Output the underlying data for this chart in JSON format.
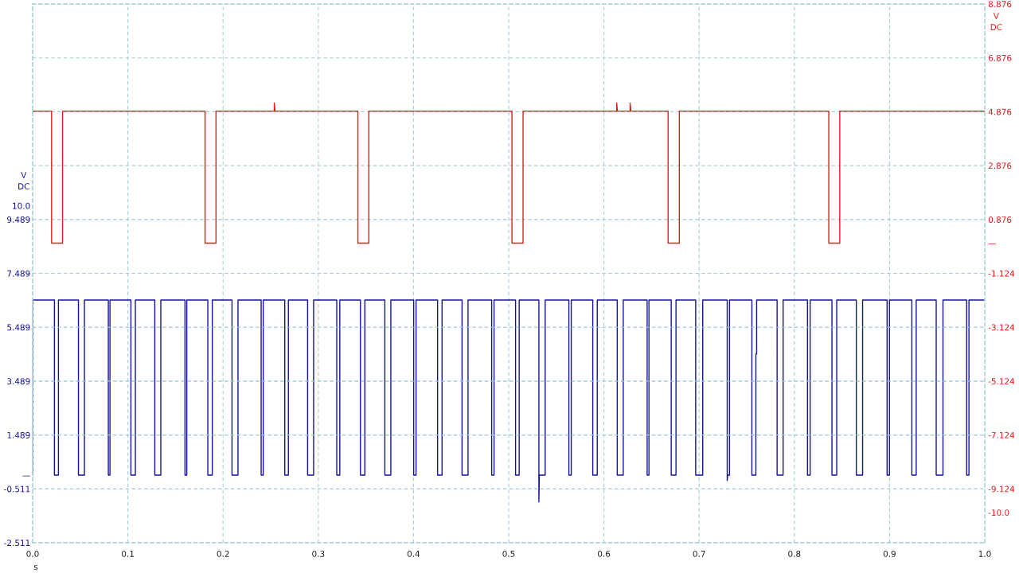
{
  "chart_data": {
    "type": "line",
    "xlabel": "s",
    "ylabel": "V\nDC",
    "y2label": "V\nDC",
    "xlim": [
      0,
      1
    ],
    "xticks": [
      {
        "value": 0,
        "label": "0.0"
      },
      0.1,
      0.2,
      0.3,
      0.4,
      0.5,
      0.6,
      0.7,
      0.8,
      0.9,
      {
        "value": 1,
        "label": "1.0"
      }
    ],
    "ylim": [
      -2.511,
      17.489
    ],
    "yticks": [
      -2.511,
      -0.511,
      {
        "value": 0,
        "label": "—"
      },
      1.489,
      3.489,
      5.489,
      7.489,
      9.489,
      {
        "value": 10,
        "label": "10.0"
      }
    ],
    "y2lim": [
      -11.124,
      8.876
    ],
    "y2ticks": [
      {
        "value": -10,
        "label": "-10.0"
      },
      -9.124,
      -7.124,
      -5.124,
      -3.124,
      -1.124,
      {
        "value": 0,
        "label": "—"
      },
      0.876,
      2.876,
      4.876,
      6.876,
      8.876
    ],
    "grid": true,
    "series": [
      {
        "color": "#14149b",
        "axis": "y",
        "x": [
          0.0,
          0.0,
          0.0229,
          0.0229,
          0.0271,
          0.0271,
          0.0481,
          0.0481,
          0.0544,
          0.0544,
          0.0795,
          0.0795,
          0.0812,
          0.0812,
          0.1032,
          0.1032,
          0.1079,
          0.1079,
          0.1283,
          0.1283,
          0.1346,
          0.1346,
          0.16,
          0.16,
          0.1619,
          0.1619,
          0.184,
          0.184,
          0.1887,
          0.1887,
          0.2094,
          0.2094,
          0.2157,
          0.2157,
          0.24,
          0.24,
          0.2422,
          0.2422,
          0.2648,
          0.2648,
          0.2686,
          0.2686,
          0.2888,
          0.2888,
          0.2951,
          0.2951,
          0.3194,
          0.3194,
          0.3226,
          0.3226,
          0.3443,
          0.3443,
          0.3489,
          0.3489,
          0.3699,
          0.3699,
          0.3762,
          0.3762,
          0.4002,
          0.4002,
          0.4027,
          0.4027,
          0.4253,
          0.4253,
          0.43,
          0.43,
          0.451,
          0.451,
          0.4573,
          0.4573,
          0.4821,
          0.4821,
          0.4846,
          0.4846,
          0.5072,
          0.5072,
          0.511,
          0.511,
          0.5317,
          0.5317,
          0.5322,
          0.5383,
          0.5383,
          0.5632,
          0.5632,
          0.5657,
          0.5657,
          0.5883,
          0.5883,
          0.593,
          0.593,
          0.614,
          0.614,
          0.6203,
          0.6203,
          0.6454,
          0.6454,
          0.6473,
          0.6473,
          0.6707,
          0.6707,
          0.6757,
          0.6757,
          0.6964,
          0.6964,
          0.7038,
          0.7038,
          0.7295,
          0.7295,
          0.73,
          0.7319,
          0.7319,
          0.7554,
          0.7554,
          0.7596,
          0.7596,
          0.7604,
          0.7604,
          0.7819,
          0.7819,
          0.7882,
          0.7882,
          0.8138,
          0.8138,
          0.8166,
          0.8166,
          0.8395,
          0.8395,
          0.8445,
          0.8445,
          0.8651,
          0.8651,
          0.8717,
          0.8717,
          0.8974,
          0.8974,
          0.8999,
          0.8999,
          0.9234,
          0.9234,
          0.928,
          0.928,
          0.949,
          0.949,
          0.9561,
          0.9561,
          0.981,
          0.981,
          0.9834,
          0.9834,
          1.0
        ],
        "values": [
          0.0,
          6.5,
          6.5,
          0.0,
          0.0,
          6.5,
          6.5,
          0.0,
          0.0,
          6.5,
          6.5,
          0.0,
          0.0,
          6.5,
          6.5,
          0.0,
          0.0,
          6.5,
          6.5,
          0.0,
          0.0,
          6.5,
          6.5,
          0.0,
          0.0,
          6.5,
          6.5,
          0.0,
          0.0,
          6.5,
          6.5,
          0.0,
          0.0,
          6.5,
          6.5,
          0.0,
          0.0,
          6.5,
          6.5,
          0.0,
          0.0,
          6.5,
          6.5,
          0.0,
          0.0,
          6.5,
          6.5,
          0.0,
          0.0,
          6.5,
          6.5,
          0.0,
          0.0,
          6.5,
          6.5,
          0.0,
          0.0,
          6.5,
          6.5,
          0.0,
          0.0,
          6.5,
          6.5,
          0.0,
          0.0,
          6.5,
          6.5,
          0.0,
          0.0,
          6.5,
          6.5,
          0.0,
          0.0,
          6.5,
          6.5,
          0.0,
          0.0,
          6.5,
          6.5,
          -1.0,
          0.0,
          0.0,
          6.5,
          6.5,
          0.0,
          0.0,
          6.5,
          6.5,
          0.0,
          0.0,
          6.5,
          6.5,
          0.0,
          0.0,
          6.5,
          6.5,
          0.0,
          0.0,
          6.5,
          6.5,
          0.0,
          0.0,
          6.5,
          6.5,
          0.0,
          0.0,
          6.5,
          6.5,
          -0.2,
          0.0,
          0.0,
          6.5,
          6.5,
          0.0,
          0.0,
          4.5,
          4.5,
          6.5,
          6.5,
          0.0,
          0.0,
          6.5,
          6.5,
          0.0,
          0.0,
          6.5,
          6.5,
          0.0,
          0.0,
          6.5,
          6.5,
          0.0,
          0.0,
          6.5,
          6.5,
          0.0,
          0.0,
          6.5,
          6.5,
          0.0,
          0.0,
          6.5,
          6.5,
          0.0,
          0.0,
          6.5,
          6.5,
          0.0,
          0.0,
          6.5,
          6.5
        ]
      },
      {
        "color": "#e01b1b",
        "axis": "y2",
        "x": [
          0.0,
          0.0199,
          0.0199,
          0.0314,
          0.0314,
          0.1811,
          0.1811,
          0.1926,
          0.1926,
          0.2538,
          0.2538,
          0.2546,
          0.3416,
          0.3416,
          0.3531,
          0.3531,
          0.5034,
          0.5034,
          0.5151,
          0.5151,
          0.6134,
          0.6134,
          0.6142,
          0.6275,
          0.6275,
          0.6283,
          0.6674,
          0.6674,
          0.6792,
          0.6792,
          0.8362,
          0.8362,
          0.8477,
          0.8477,
          1.0
        ],
        "values": [
          4.9,
          4.9,
          0.0,
          0.0,
          4.9,
          4.9,
          0.0,
          0.0,
          4.9,
          4.9,
          5.2,
          4.9,
          4.9,
          0.0,
          0.0,
          4.9,
          4.9,
          0.0,
          0.0,
          4.9,
          4.9,
          5.2,
          4.9,
          4.9,
          5.2,
          4.9,
          4.9,
          0.0,
          0.0,
          4.9,
          4.9,
          0.0,
          0.0,
          4.9,
          4.9
        ]
      }
    ]
  }
}
